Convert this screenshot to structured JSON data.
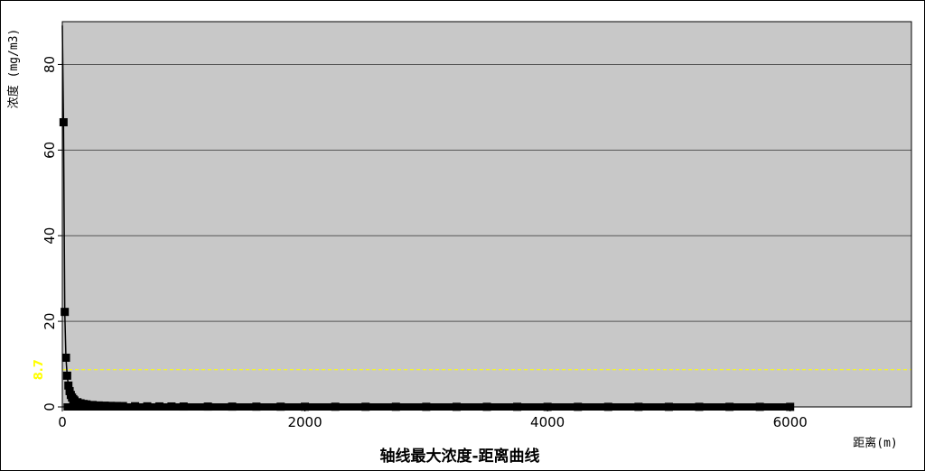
{
  "chart_data": {
    "type": "line",
    "title": "轴线最大浓度-距离曲线",
    "xlabel": "距离(m)",
    "ylabel": "浓度 (mg/m3)",
    "xlim": [
      0,
      7000
    ],
    "ylim": [
      0,
      90
    ],
    "x_ticks": [
      0,
      2000,
      4000,
      6000
    ],
    "y_ticks": [
      0,
      20,
      40,
      60,
      80
    ],
    "grid": "horizontal",
    "reference_line": {
      "y": 8.7,
      "label": "8.7",
      "color": "#ffff00",
      "style": "dashed"
    },
    "colors": {
      "plot_background": "#c8c8c8",
      "series": "#000000",
      "gridline": "#555555"
    },
    "series": [
      {
        "marker": "square",
        "x": [
          10,
          20,
          30,
          40,
          50,
          60,
          70,
          80,
          90,
          100,
          125,
          150,
          175,
          200,
          250,
          300,
          350,
          400,
          450,
          500,
          600,
          700,
          800,
          900,
          1000,
          1200,
          1400,
          1600,
          1800,
          2000,
          2250,
          2500,
          2750,
          3000,
          3250,
          3500,
          3750,
          4000,
          4250,
          4500,
          4750,
          5000,
          5250,
          5500,
          5750,
          6000
        ],
        "y": [
          66.5,
          22.2,
          11.5,
          7.3,
          5.0,
          3.7,
          2.8,
          2.2,
          1.8,
          1.5,
          1.1,
          0.85,
          0.7,
          0.6,
          0.45,
          0.35,
          0.3,
          0.25,
          0.22,
          0.2,
          0.16,
          0.14,
          0.12,
          0.11,
          0.1,
          0.09,
          0.08,
          0.07,
          0.06,
          0.05,
          0.05,
          0.04,
          0.04,
          0.03,
          0.03,
          0.03,
          0.03,
          0.02,
          0.02,
          0.02,
          0.02,
          0.02,
          0.02,
          0.02,
          0.02,
          0.02
        ]
      }
    ]
  }
}
